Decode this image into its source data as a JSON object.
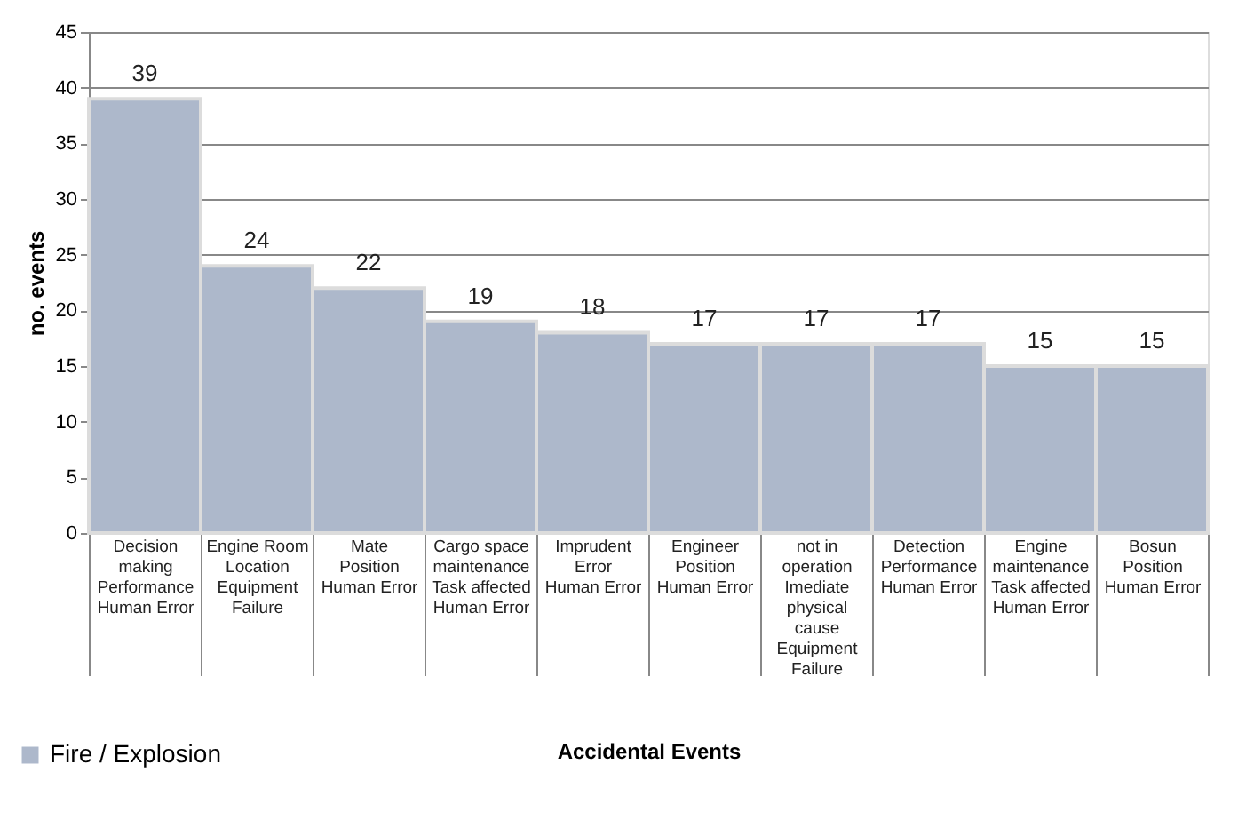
{
  "chart_data": {
    "type": "bar",
    "xlabel": "Accidental Events",
    "ylabel": "no. events",
    "categories": [
      "Decision making\nPerformance\nHuman Error",
      "Engine Room\nLocation\nEquipment Failure",
      "Mate\nPosition\nHuman Error",
      "Cargo space maintenance\nTask affected\nHuman Error",
      "Imprudent\nError\nHuman Error",
      "Engineer\nPosition\nHuman Error",
      "not in operation\nImediate physical cause\nEquipment Failure",
      "Detection\nPerformance\nHuman Error",
      "Engine maintenance\nTask affected\nHuman Error",
      "Bosun\nPosition\nHuman Error"
    ],
    "series": [
      {
        "name": "Fire / Explosion",
        "color": "#adb8cb",
        "values": [
          39,
          24,
          22,
          19,
          18,
          17,
          17,
          17,
          15,
          15
        ]
      }
    ],
    "ylim": [
      0,
      45
    ],
    "yticks": [
      0,
      5,
      10,
      15,
      20,
      25,
      30,
      35,
      40,
      45
    ],
    "grid": "y",
    "legend": "bottom left",
    "data_labels": true
  }
}
